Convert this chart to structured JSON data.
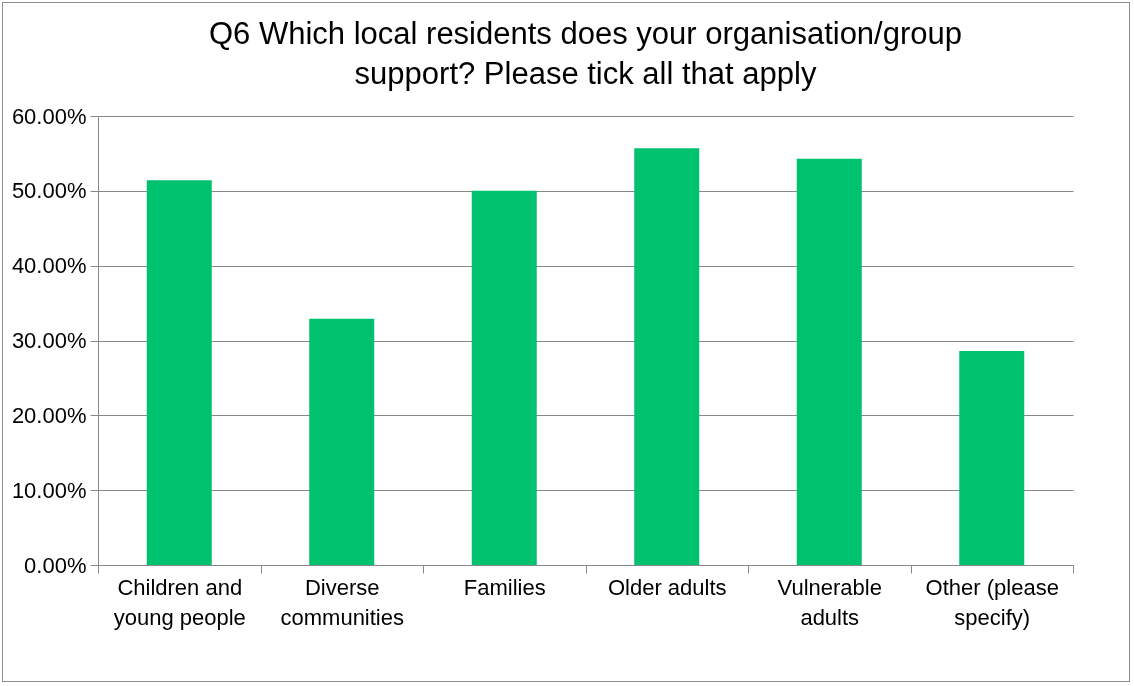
{
  "chart_data": {
    "type": "bar",
    "title": "Q6  Which local residents does your organisation/group support?  Please tick all that apply",
    "categories": [
      "Children and young people",
      "Diverse communities",
      "Families",
      "Older adults",
      "Vulnerable adults",
      "Other (please specify)"
    ],
    "values": [
      51.4,
      32.9,
      50.0,
      55.7,
      54.3,
      28.6
    ],
    "color": "#00c16e",
    "ylim": [
      0,
      60
    ],
    "yticks": [
      {
        "value": 0,
        "label": "0.00%"
      },
      {
        "value": 10,
        "label": "10.00%"
      },
      {
        "value": 20,
        "label": "20.00%"
      },
      {
        "value": 30,
        "label": "30.00%"
      },
      {
        "value": 40,
        "label": "40.00%"
      },
      {
        "value": 50,
        "label": "50.00%"
      },
      {
        "value": 60,
        "label": "60.00%"
      }
    ],
    "grid": "y"
  }
}
